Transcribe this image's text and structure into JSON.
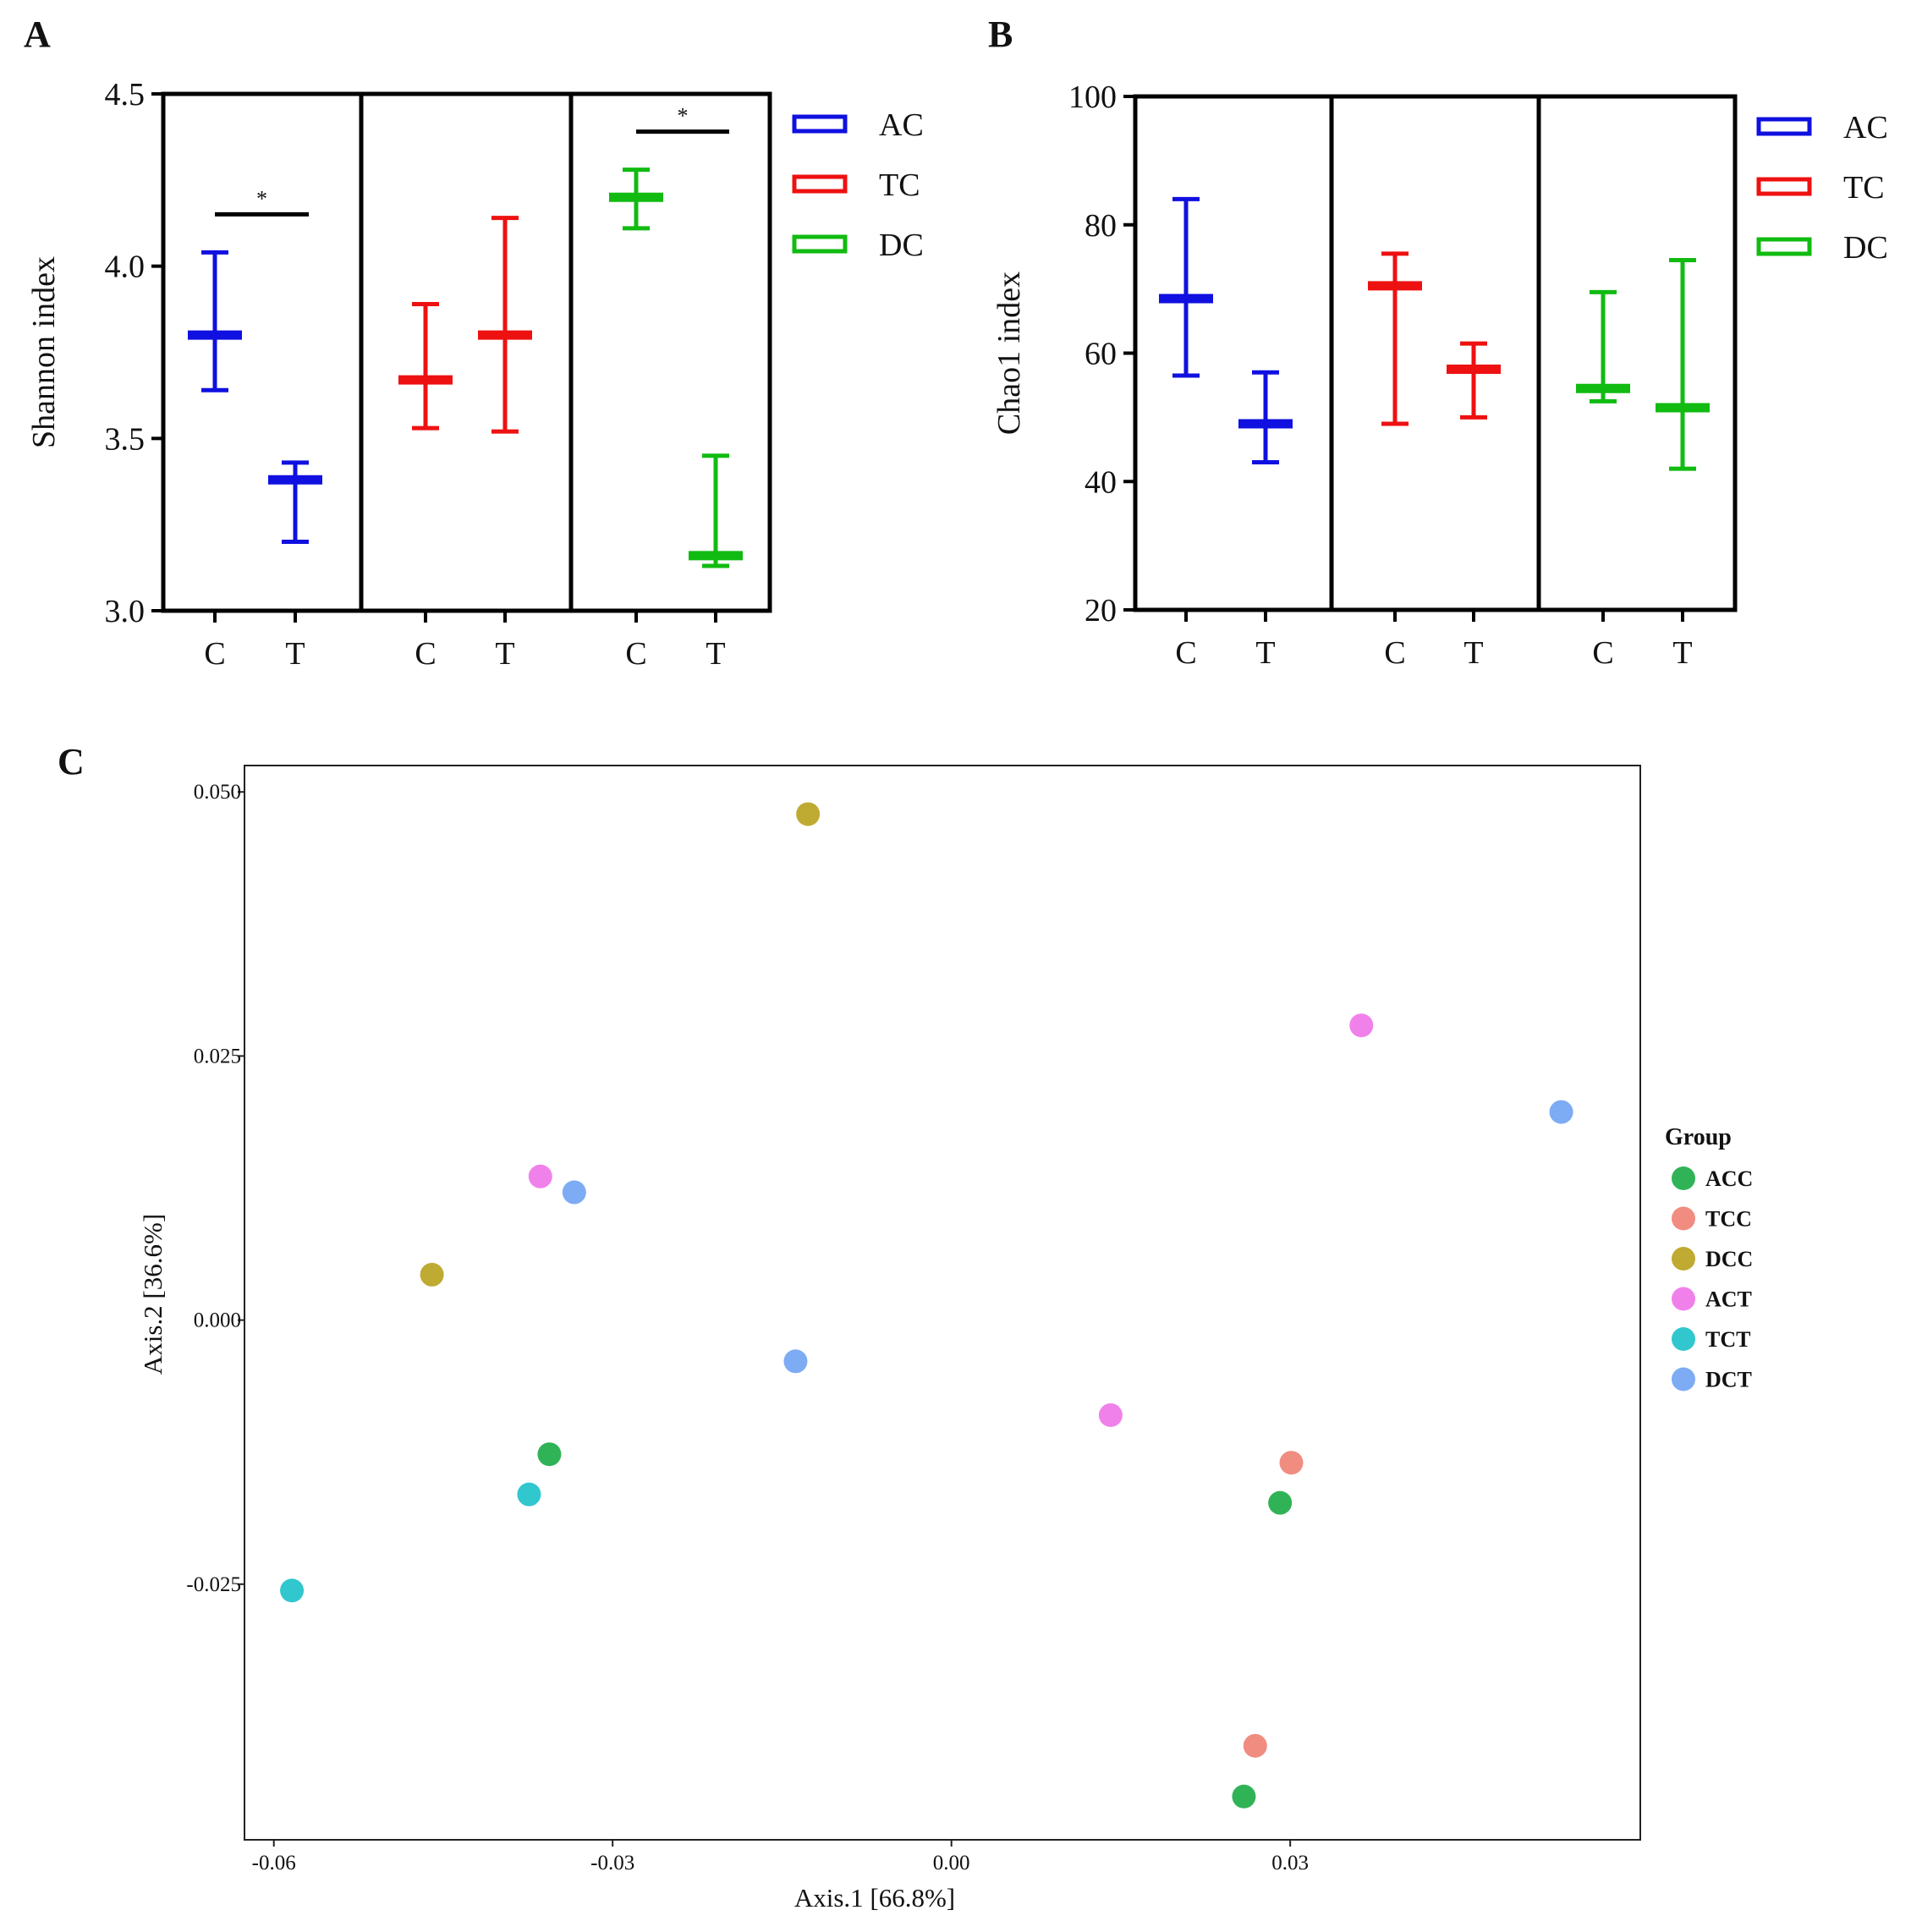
{
  "chart_data": [
    {
      "panel": "A",
      "type": "errorbar",
      "ylabel": "Shannon index",
      "ylim": [
        3.0,
        4.5
      ],
      "yticks": [
        "3.0",
        "3.5",
        "4.0",
        "4.5"
      ],
      "groups": [
        {
          "legend": "AC",
          "color": "#1010e0",
          "sig": "*",
          "points": [
            {
              "label": "C",
              "mean": 3.8,
              "low": 3.64,
              "high": 4.04
            },
            {
              "label": "T",
              "mean": 3.38,
              "low": 3.2,
              "high": 3.43
            }
          ]
        },
        {
          "legend": "TC",
          "color": "#ee1111",
          "sig": "",
          "points": [
            {
              "label": "C",
              "mean": 3.67,
              "low": 3.53,
              "high": 3.89
            },
            {
              "label": "T",
              "mean": 3.8,
              "low": 3.52,
              "high": 4.14
            }
          ]
        },
        {
          "legend": "DC",
          "color": "#11bb11",
          "sig": "*",
          "points": [
            {
              "label": "C",
              "mean": 4.2,
              "low": 4.11,
              "high": 4.28
            },
            {
              "label": "T",
              "mean": 3.16,
              "low": 3.13,
              "high": 3.45
            }
          ]
        }
      ]
    },
    {
      "panel": "B",
      "type": "errorbar",
      "ylabel": "Chao1 index",
      "ylim": [
        20,
        100
      ],
      "yticks": [
        "20",
        "40",
        "60",
        "80",
        "100"
      ],
      "groups": [
        {
          "legend": "AC",
          "color": "#1010e0",
          "sig": "",
          "points": [
            {
              "label": "C",
              "mean": 68.5,
              "low": 56.5,
              "high": 84.0
            },
            {
              "label": "T",
              "mean": 49.0,
              "low": 43.0,
              "high": 57.0
            }
          ]
        },
        {
          "legend": "TC",
          "color": "#ee1111",
          "sig": "",
          "points": [
            {
              "label": "C",
              "mean": 70.5,
              "low": 49.0,
              "high": 75.5
            },
            {
              "label": "T",
              "mean": 57.5,
              "low": 50.0,
              "high": 61.5
            }
          ]
        },
        {
          "legend": "DC",
          "color": "#11bb11",
          "sig": "",
          "points": [
            {
              "label": "C",
              "mean": 54.5,
              "low": 52.5,
              "high": 69.5
            },
            {
              "label": "T",
              "mean": 51.5,
              "low": 42.0,
              "high": 74.5
            }
          ]
        }
      ]
    },
    {
      "panel": "C",
      "type": "scatter",
      "xlabel": "Axis.1   [66.8%]",
      "ylabel": "Axis.2   [36.6%]",
      "xlim": [
        -0.0626,
        0.061
      ],
      "ylim": [
        -0.0492,
        0.0525
      ],
      "xticks": [
        {
          "v": -0.06,
          "label": "-0.06"
        },
        {
          "v": -0.03,
          "label": "-0.03"
        },
        {
          "v": 0.0,
          "label": "0.00"
        },
        {
          "v": 0.03,
          "label": "0.03"
        }
      ],
      "yticks": [
        {
          "v": 0.05,
          "label": "0.050"
        },
        {
          "v": 0.025,
          "label": "0.025"
        },
        {
          "v": 0.0,
          "label": "0.000"
        },
        {
          "v": -0.025,
          "label": "-0.025"
        }
      ],
      "legend_title": "Group",
      "series": [
        {
          "name": "ACC",
          "color": "#1aab45",
          "points": [
            [
              -0.0356,
              -0.0127
            ],
            [
              0.0291,
              -0.0173
            ],
            [
              0.0259,
              -0.0451
            ]
          ]
        },
        {
          "name": "TCC",
          "color": "#f07f72",
          "points": [
            [
              0.0301,
              -0.0135
            ],
            [
              0.0269,
              -0.0403
            ]
          ]
        },
        {
          "name": "DCC",
          "color": "#b8a11c",
          "points": [
            [
              -0.0127,
              0.0479
            ],
            [
              -0.046,
              0.0043
            ]
          ]
        },
        {
          "name": "ACT",
          "color": "#ef73e8",
          "points": [
            [
              -0.0364,
              0.0136
            ],
            [
              0.0363,
              0.0279
            ],
            [
              0.0141,
              -0.009
            ]
          ]
        },
        {
          "name": "TCT",
          "color": "#1bc1c9",
          "points": [
            [
              -0.0374,
              -0.0165
            ],
            [
              -0.0584,
              -0.0256
            ]
          ]
        },
        {
          "name": "DCT",
          "color": "#6fa2f3",
          "points": [
            [
              -0.0334,
              0.0121
            ],
            [
              -0.0138,
              -0.0039
            ],
            [
              0.054,
              0.0197
            ]
          ]
        }
      ]
    }
  ],
  "panel_labels": [
    "A",
    "B",
    "C"
  ],
  "legend_C_title": "Group"
}
